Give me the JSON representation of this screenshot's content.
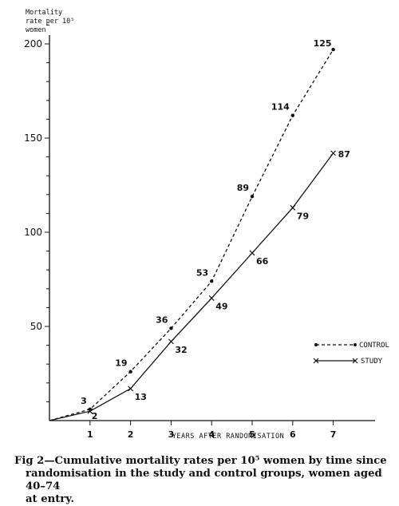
{
  "chart_data": {
    "type": "line",
    "ylabel_lines": [
      "Mortality",
      "rate per 10⁵",
      "women"
    ],
    "xlabel": "YEARS AFTER RANDOMISATION",
    "x": [
      0,
      1,
      2,
      3,
      4,
      5,
      6,
      7
    ],
    "xticks": [
      "1",
      "2",
      "3",
      "4",
      "5",
      "6",
      "7"
    ],
    "yticks": [
      "50",
      "100",
      "150",
      "200"
    ],
    "xlim": [
      0,
      8
    ],
    "ylim": [
      0,
      210
    ],
    "series": [
      {
        "name": "CONTROL",
        "style": "dashed",
        "marker": "dot",
        "values": [
          0,
          6,
          26,
          49,
          74,
          119,
          162,
          197
        ],
        "labels": [
          "",
          "3",
          "19",
          "36",
          "53",
          "89",
          "114",
          "125"
        ]
      },
      {
        "name": "STUDY",
        "style": "solid",
        "marker": "cross",
        "values": [
          0,
          5,
          17,
          42,
          65,
          89,
          113,
          142
        ],
        "labels": [
          "",
          "2",
          "13",
          "32",
          "49",
          "66",
          "79",
          "87"
        ]
      }
    ],
    "legend_position": "right"
  },
  "caption": {
    "lines": [
      "Fig 2—Cumulative mortality rates per 10⁵ women by time since",
      "randomisation in the study and control groups, women aged 40–74",
      "at entry."
    ]
  }
}
